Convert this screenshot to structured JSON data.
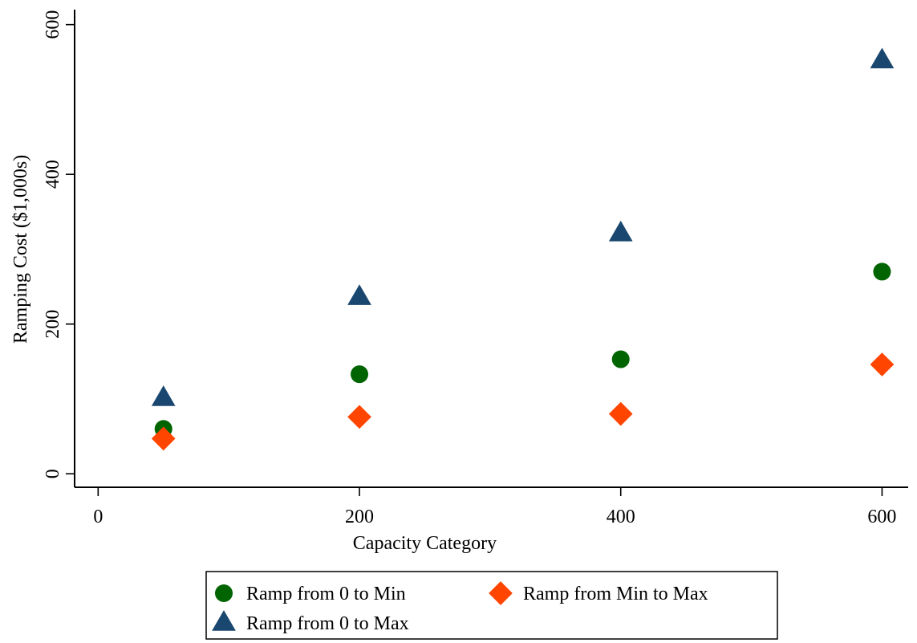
{
  "chart_data": {
    "type": "scatter",
    "title": "",
    "xlabel": "Capacity Category",
    "ylabel": "Ramping Cost ($1,000s)",
    "xlim": [
      -18,
      620
    ],
    "ylim": [
      -18,
      620
    ],
    "x_ticks": [
      0,
      200,
      400,
      600
    ],
    "y_ticks": [
      0,
      200,
      400,
      600
    ],
    "x_tick_labels": [
      "0",
      "200",
      "400",
      "600"
    ],
    "y_tick_labels": [
      "0",
      "200",
      "400",
      "600"
    ],
    "grid": false,
    "legend_position": "bottom",
    "series": [
      {
        "name": "Ramp from 0 to Min",
        "marker": "circle",
        "color": "#006400",
        "points": [
          {
            "x": 50,
            "y": 60
          },
          {
            "x": 200,
            "y": 133
          },
          {
            "x": 400,
            "y": 153
          },
          {
            "x": 600,
            "y": 270
          }
        ]
      },
      {
        "name": "Ramp from Min to Max",
        "marker": "diamond",
        "color": "#FF4500",
        "points": [
          {
            "x": 50,
            "y": 47
          },
          {
            "x": 200,
            "y": 76
          },
          {
            "x": 400,
            "y": 80
          },
          {
            "x": 600,
            "y": 146
          }
        ]
      },
      {
        "name": "Ramp from 0 to Max",
        "marker": "triangle",
        "color": "#1A476F",
        "points": [
          {
            "x": 50,
            "y": 101
          },
          {
            "x": 200,
            "y": 236
          },
          {
            "x": 400,
            "y": 321
          },
          {
            "x": 600,
            "y": 552
          }
        ]
      }
    ]
  }
}
